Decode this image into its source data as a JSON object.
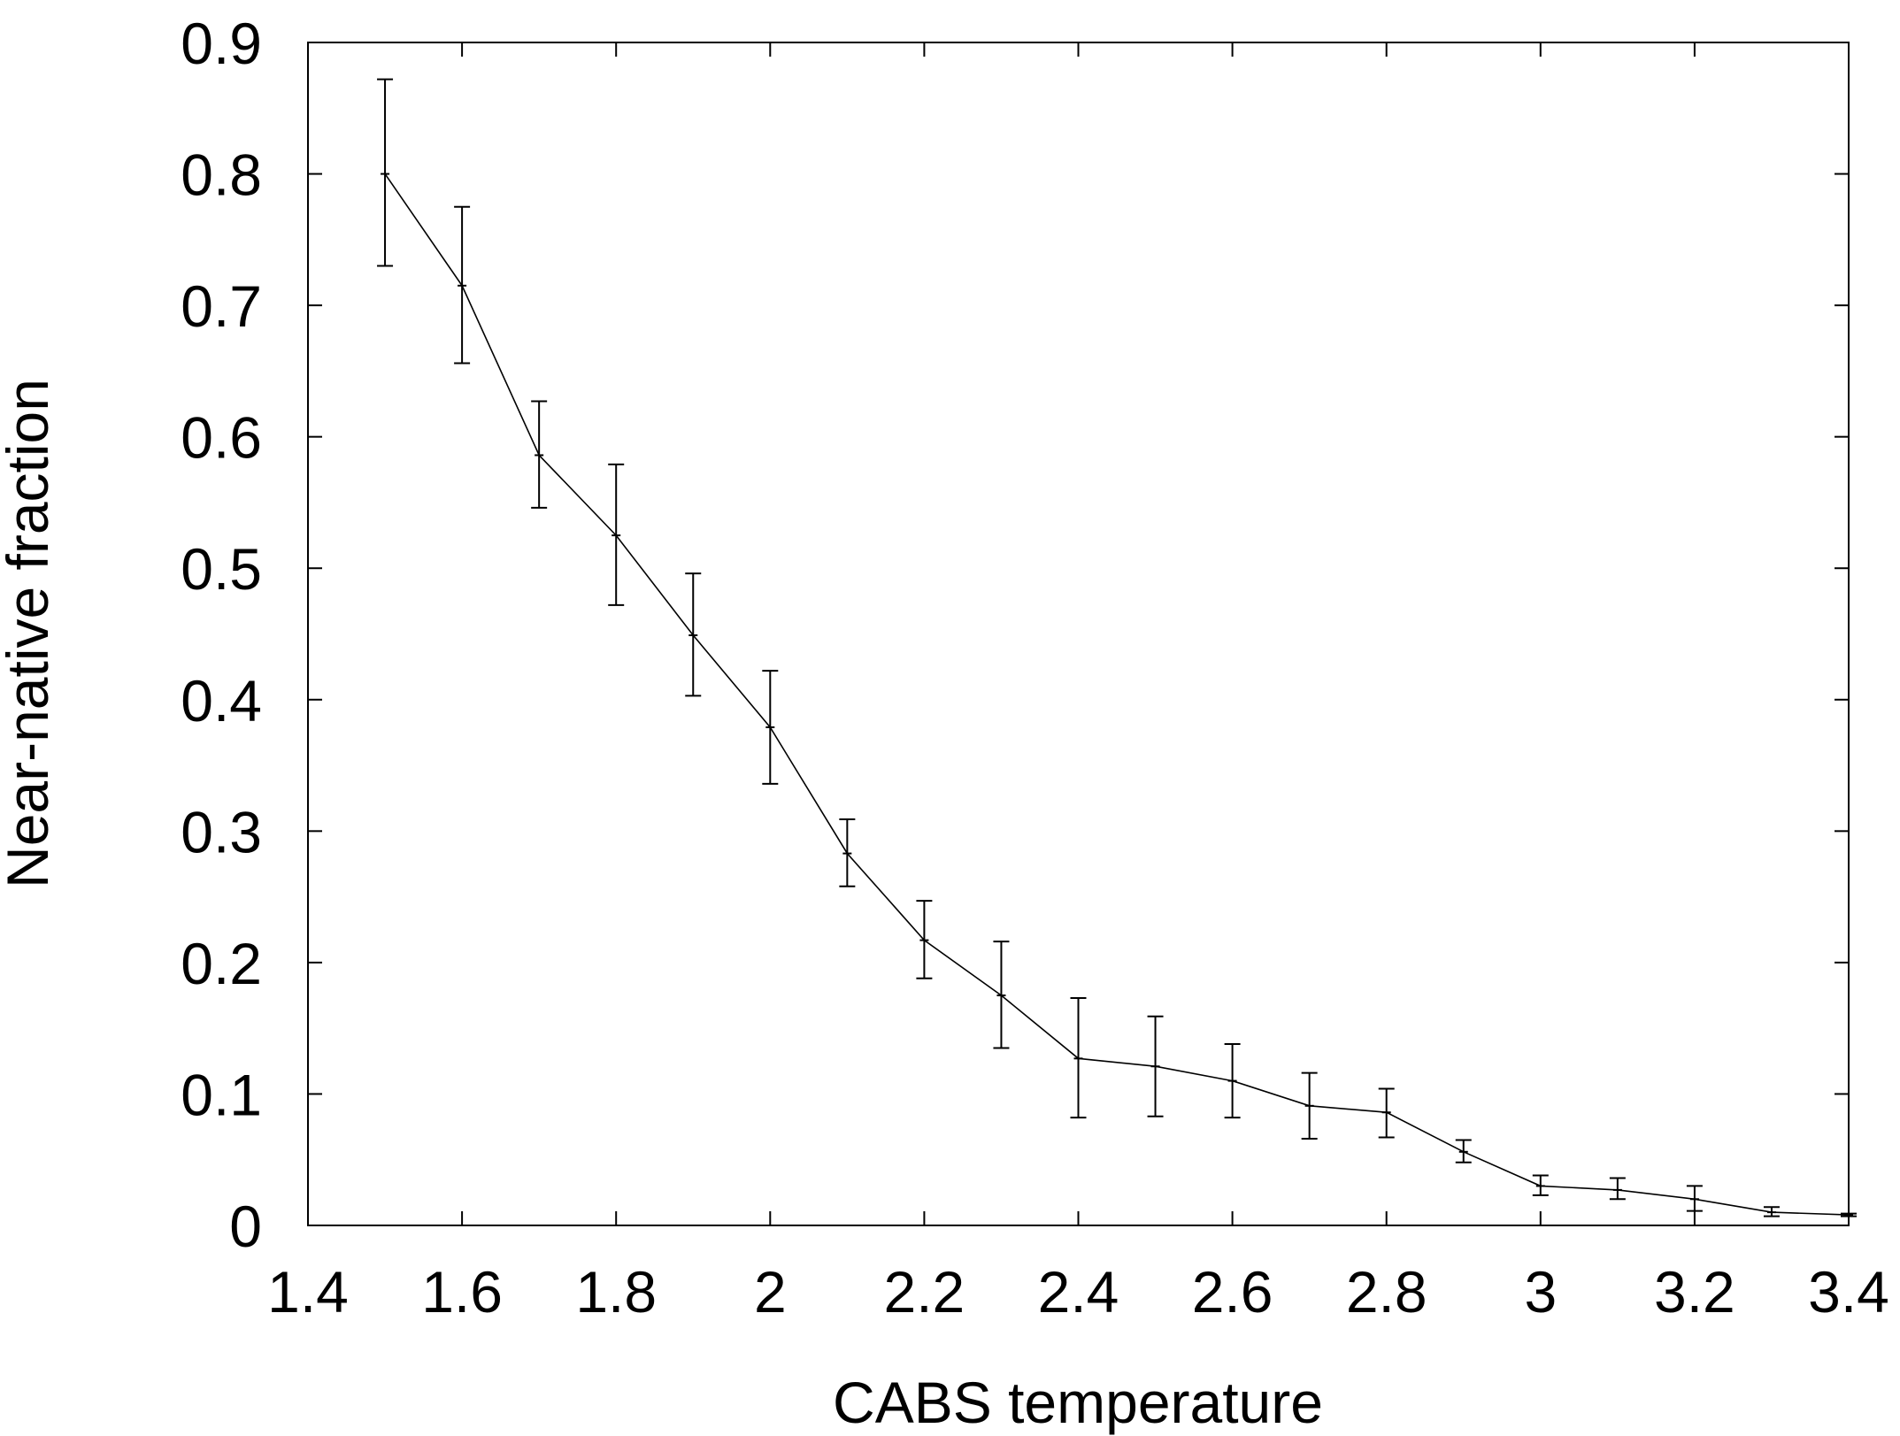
{
  "chart_data": {
    "type": "line",
    "title": "",
    "xlabel": "CABS temperature",
    "ylabel": "Near-native fraction",
    "xlim": [
      1.4,
      3.4
    ],
    "ylim": [
      0,
      0.9
    ],
    "xticks": [
      "1.4",
      "1.6",
      "1.8",
      "2",
      "2.2",
      "2.4",
      "2.6",
      "2.8",
      "3",
      "3.2",
      "3.4"
    ],
    "yticks": [
      "0",
      "0.1",
      "0.2",
      "0.3",
      "0.4",
      "0.5",
      "0.6",
      "0.7",
      "0.8",
      "0.9"
    ],
    "grid": false,
    "legend": "none",
    "line_color": "#000000",
    "series": [
      {
        "x": [
          1.5,
          1.6,
          1.7,
          1.8,
          1.9,
          2.0,
          2.1,
          2.2,
          2.3,
          2.4,
          2.5,
          2.6,
          2.7,
          2.8,
          2.9,
          3.0,
          3.1,
          3.2,
          3.3,
          3.4
        ],
        "y": [
          0.8,
          0.715,
          0.586,
          0.525,
          0.449,
          0.379,
          0.283,
          0.217,
          0.175,
          0.127,
          0.121,
          0.11,
          0.091,
          0.086,
          0.056,
          0.03,
          0.027,
          0.02,
          0.01,
          0.008
        ],
        "yerr_low": [
          0.73,
          0.656,
          0.546,
          0.472,
          0.403,
          0.336,
          0.258,
          0.188,
          0.135,
          0.082,
          0.083,
          0.082,
          0.066,
          0.067,
          0.048,
          0.023,
          0.02,
          0.011,
          0.007,
          0.007
        ],
        "yerr_high": [
          0.872,
          0.775,
          0.627,
          0.579,
          0.496,
          0.422,
          0.309,
          0.247,
          0.216,
          0.173,
          0.159,
          0.138,
          0.116,
          0.104,
          0.065,
          0.038,
          0.036,
          0.03,
          0.014,
          0.009
        ]
      }
    ]
  }
}
